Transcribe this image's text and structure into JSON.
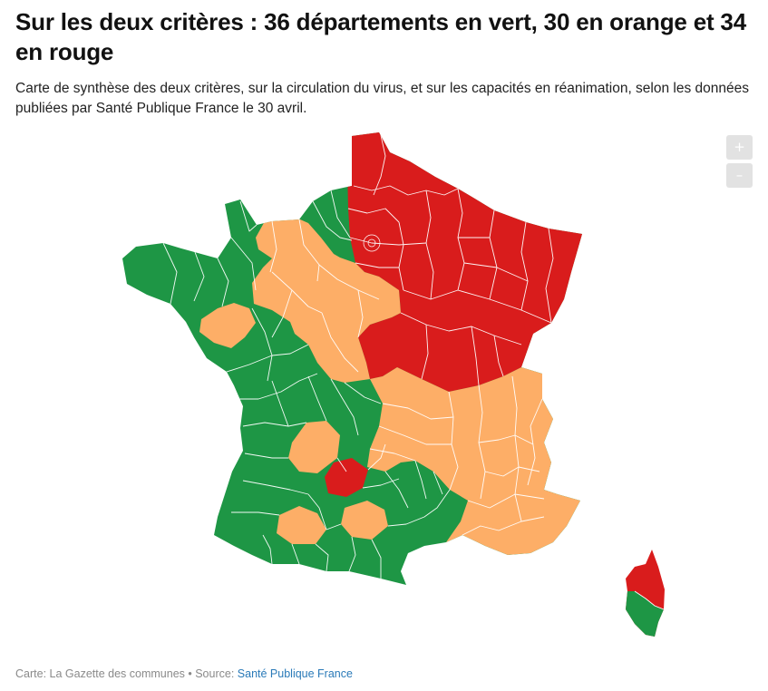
{
  "header": {
    "title": "Sur les deux critères : 36 départements en vert, 30 en orange et 34 en rouge",
    "subtitle": "Carte de synthèse des deux critères, sur la circulation du virus, et sur les capacités en réanimation, selon les données publiées par Santé Publique France le 30 avril."
  },
  "map_controls": {
    "zoom_in_label": "+",
    "zoom_out_label": "–"
  },
  "legend_colors": {
    "vert": "#1e9645",
    "orange": "#fdae67",
    "rouge": "#d91c1c",
    "borders": "#ffffff"
  },
  "footer": {
    "credit": "Carte: La Gazette des communes • Source: ",
    "source_link": "Santé Publique France"
  }
}
